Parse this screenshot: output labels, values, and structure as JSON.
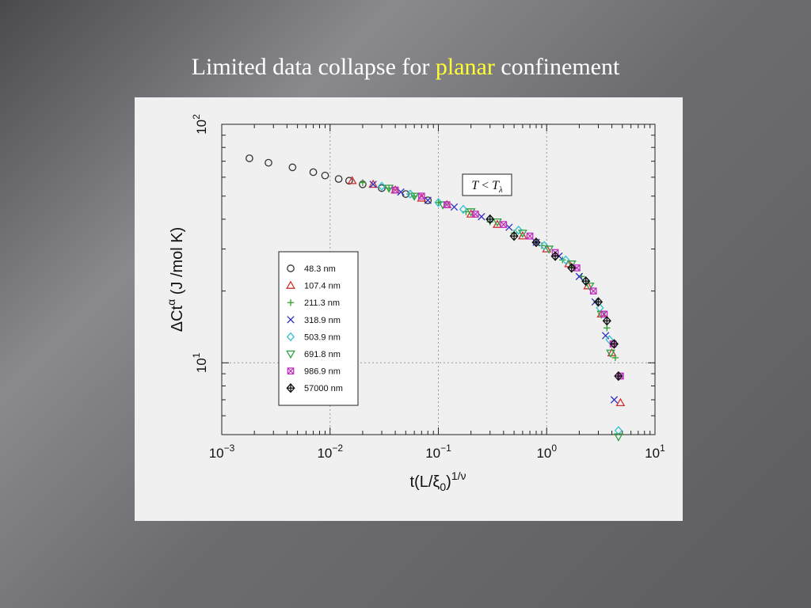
{
  "slide": {
    "title_before": "Limited data collapse for ",
    "title_highlight": "planar",
    "title_after": " confinement",
    "highlight_color": "#ffff33"
  },
  "chart_data": {
    "type": "scatter",
    "x_scale": "log",
    "y_scale": "log",
    "xlim": [
      0.001,
      10
    ],
    "ylim": [
      5,
      100
    ],
    "x_ticks": [
      {
        "value": 0.001,
        "base": "10",
        "exp": "−3"
      },
      {
        "value": 0.01,
        "base": "10",
        "exp": "−2"
      },
      {
        "value": 0.1,
        "base": "10",
        "exp": "−1"
      },
      {
        "value": 1,
        "base": "10",
        "exp": "0"
      },
      {
        "value": 10,
        "base": "10",
        "exp": "1"
      }
    ],
    "y_ticks": [
      {
        "value": 10,
        "base": "10",
        "exp": "1"
      },
      {
        "value": 100,
        "base": "10",
        "exp": "2"
      }
    ],
    "grid": true,
    "xlabel": {
      "main": "t(L/ξ",
      "sub": "0",
      "close": ")",
      "sup": "1/ν"
    },
    "ylabel": {
      "main": "ΔCt",
      "sup": "α",
      "units": " (J /mol K)"
    },
    "annotation": {
      "lhs": "T",
      "op": " < ",
      "rhs": "T",
      "sub": "λ"
    },
    "legend": {
      "placement": "center-left",
      "entries": [
        "48.3 nm",
        "107.4 nm",
        "211.3 nm",
        "318.9 nm",
        "503.9 nm",
        "691.8 nm",
        "986.9 nm",
        "57000 nm"
      ]
    },
    "series": [
      {
        "name": "48.3 nm",
        "marker": "circle",
        "color": "#333333",
        "x": [
          0.0018,
          0.0027,
          0.0045,
          0.007,
          0.009,
          0.012,
          0.015,
          0.02,
          0.03,
          0.05,
          0.08
        ],
        "y": [
          72,
          69,
          66,
          63,
          61,
          59,
          58,
          56,
          54,
          51,
          48
        ]
      },
      {
        "name": "107.4 nm",
        "marker": "triangle-up",
        "color": "#d03030",
        "x": [
          0.016,
          0.025,
          0.04,
          0.07,
          0.12,
          0.2,
          0.35,
          0.6,
          1.0,
          1.6,
          2.4,
          3.2,
          4.0,
          4.8
        ],
        "y": [
          58,
          56,
          53,
          49,
          46,
          42,
          38,
          34,
          30,
          26,
          21,
          16,
          11,
          6.8
        ]
      },
      {
        "name": "211.3 nm",
        "marker": "plus",
        "color": "#30a030",
        "x": [
          0.02,
          0.035,
          0.06,
          0.1,
          0.18,
          0.3,
          0.5,
          0.9,
          1.4,
          2.1,
          2.9,
          3.6,
          4.3
        ],
        "y": [
          57,
          54,
          50,
          47,
          43,
          39,
          35,
          31,
          27,
          23,
          18,
          14,
          10.5
        ]
      },
      {
        "name": "318.9 nm",
        "marker": "x",
        "color": "#3030c0",
        "x": [
          0.025,
          0.045,
          0.08,
          0.14,
          0.25,
          0.45,
          0.8,
          1.3,
          2.0,
          2.8,
          3.5,
          4.2
        ],
        "y": [
          56,
          52,
          48,
          45,
          41,
          37,
          32,
          28,
          23,
          18,
          13,
          7
        ]
      },
      {
        "name": "503.9 nm",
        "marker": "diamond",
        "color": "#30c0d0",
        "x": [
          0.03,
          0.055,
          0.1,
          0.17,
          0.3,
          0.55,
          0.95,
          1.5,
          2.3,
          3.1,
          3.8,
          4.6
        ],
        "y": [
          55,
          51,
          47,
          44,
          40,
          36,
          31,
          27,
          22,
          17,
          12.5,
          5.2
        ]
      },
      {
        "name": "691.8 nm",
        "marker": "triangle-down",
        "color": "#30a040",
        "x": [
          0.035,
          0.06,
          0.11,
          0.2,
          0.35,
          0.6,
          1.05,
          1.7,
          2.5,
          3.2,
          3.9,
          4.6
        ],
        "y": [
          54,
          50,
          46,
          43,
          39,
          35,
          30,
          26,
          21,
          16,
          11,
          4.9
        ]
      },
      {
        "name": "986.9 nm",
        "marker": "square-x",
        "color": "#c030c0",
        "x": [
          0.04,
          0.07,
          0.12,
          0.22,
          0.4,
          0.7,
          1.2,
          1.9,
          2.7,
          3.4,
          4.1,
          4.8
        ],
        "y": [
          53,
          50,
          46,
          42,
          38,
          34,
          29,
          25,
          20,
          16,
          12,
          8.8
        ]
      },
      {
        "name": "57000 nm",
        "marker": "diamond-plus",
        "color": "#111111",
        "x": [
          0.3,
          0.5,
          0.8,
          1.2,
          1.7,
          2.3,
          3.0,
          3.6,
          4.2,
          4.6
        ],
        "y": [
          40,
          34,
          32,
          28,
          25,
          22,
          18,
          15,
          12,
          8.8
        ]
      }
    ]
  }
}
